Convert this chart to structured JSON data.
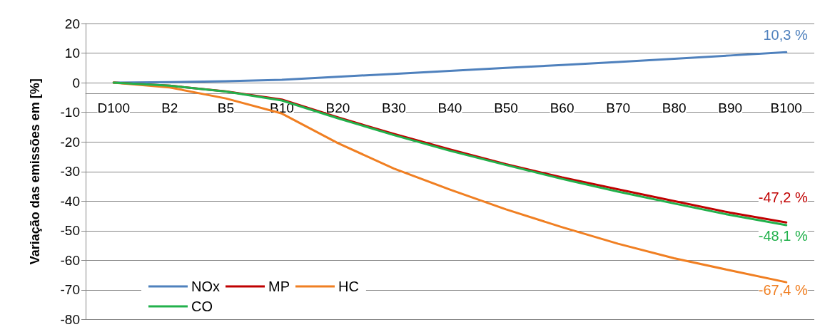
{
  "chart_data": {
    "type": "line",
    "ylabel": "Variação das emissões em [%]",
    "categories": [
      "D100",
      "B2",
      "B5",
      "B10",
      "B20",
      "B30",
      "B40",
      "B50",
      "B60",
      "B70",
      "B80",
      "B90",
      "B100"
    ],
    "series": [
      {
        "name": "NOx",
        "color": "#4f81bd",
        "values": [
          0,
          0.2,
          0.5,
          1.0,
          2.0,
          3.0,
          4.0,
          5.0,
          6.0,
          7.0,
          8.1,
          9.2,
          10.3
        ]
      },
      {
        "name": "MP",
        "color": "#c00000",
        "values": [
          0,
          -1.0,
          -2.9,
          -5.7,
          -11.7,
          -17.3,
          -22.5,
          -27.5,
          -32.0,
          -36.0,
          -40.0,
          -43.9,
          -47.2
        ]
      },
      {
        "name": "HC",
        "color": "#f07f22",
        "values": [
          0,
          -1.6,
          -5.3,
          -10.4,
          -20.4,
          -29.0,
          -36.1,
          -42.8,
          -48.8,
          -54.4,
          -59.3,
          -63.4,
          -67.4
        ]
      },
      {
        "name": "CO",
        "color": "#22b14c",
        "values": [
          0,
          -1.0,
          -3.0,
          -6.0,
          -12.0,
          -17.7,
          -23.0,
          -27.8,
          -32.5,
          -36.8,
          -40.8,
          -44.7,
          -48.1
        ]
      }
    ],
    "annotations": [
      {
        "text": "10,3 %",
        "x": "B100",
        "y": 10.3
      },
      {
        "text": "-47,2 %",
        "x": "B100",
        "y": -47.2
      },
      {
        "text": "-48,1 %",
        "x": "B100",
        "y": -48.1
      },
      {
        "text": "-67,4 %",
        "x": "B100",
        "y": -67.4
      }
    ],
    "ylim": [
      -80,
      20
    ],
    "yticks": [
      -80,
      -70,
      -60,
      -50,
      -40,
      -30,
      -20,
      -10,
      0,
      10,
      20
    ],
    "grid": "y",
    "legend": "bottom left",
    "marker": "none",
    "line_style": "solid"
  }
}
